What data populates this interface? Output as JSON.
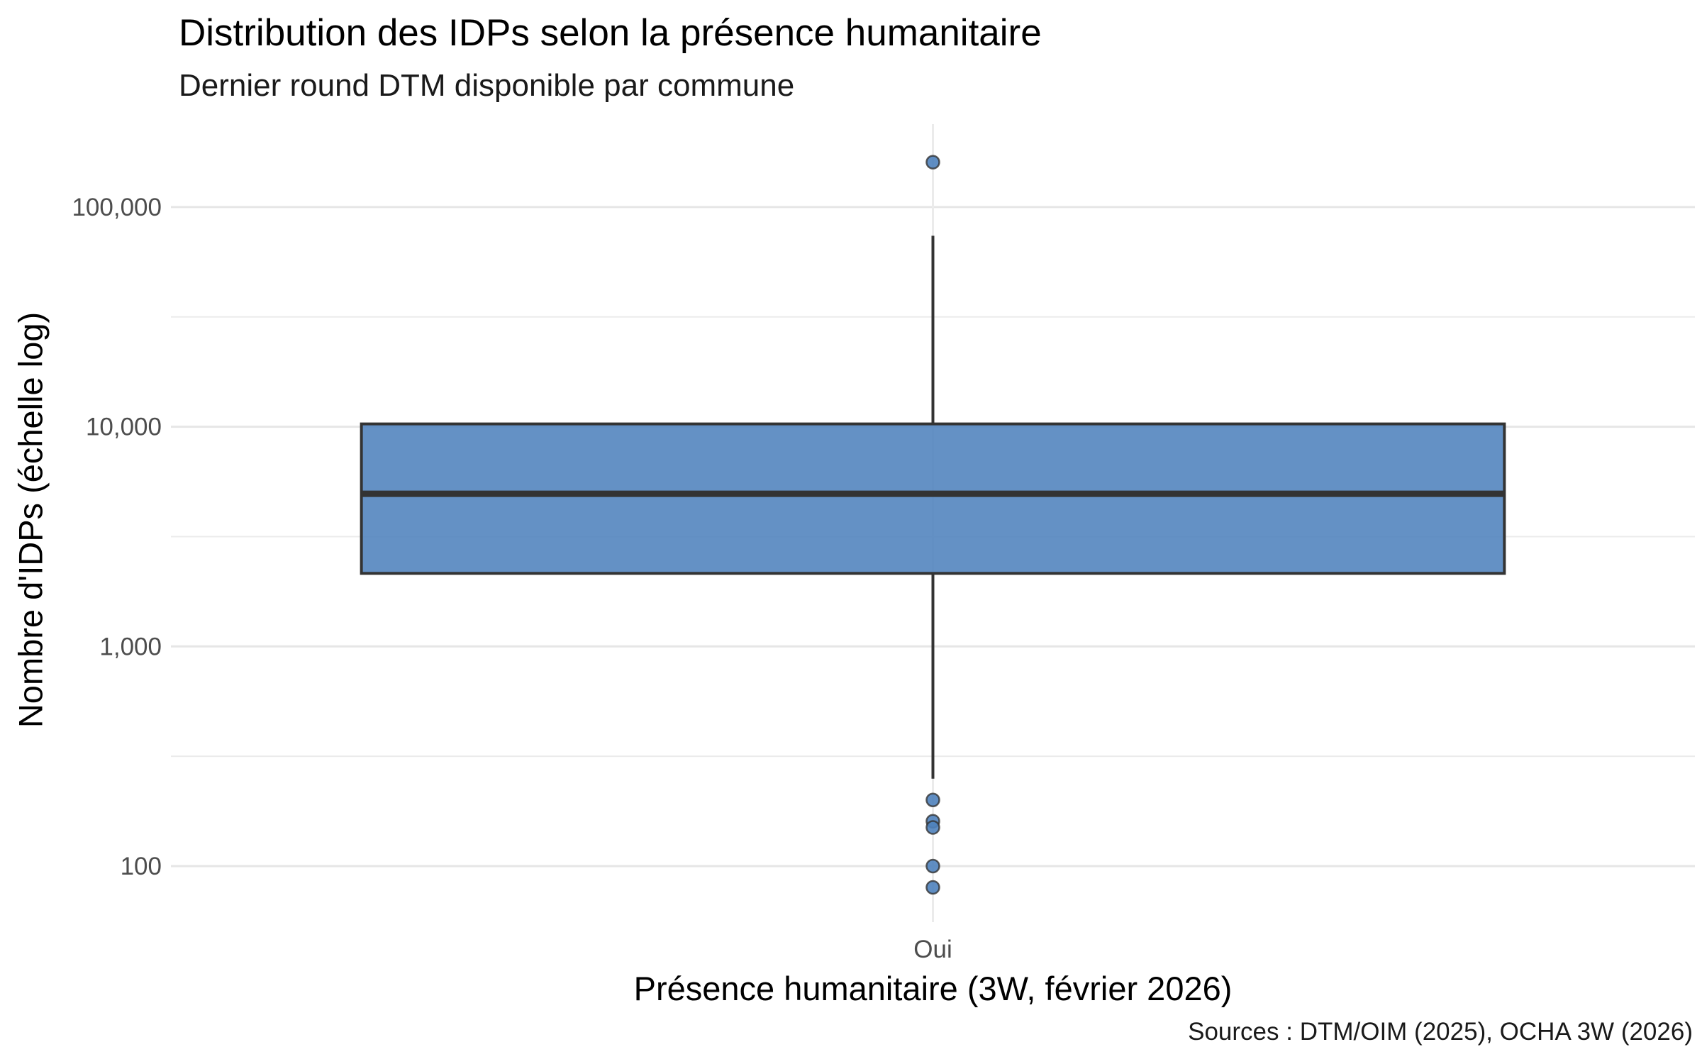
{
  "chart_data": {
    "type": "box",
    "title": "Distribution des IDPs selon la présence humanitaire",
    "subtitle": "Dernier round DTM disponible par commune",
    "xlabel": "Présence humanitaire (3W, février 2026)",
    "ylabel": "Nombre d'IDPs (échelle log)",
    "caption": "Sources : DTM/OIM (2025), OCHA 3W (2026)",
    "y_scale": "log10",
    "ylim": [
      50,
      230000
    ],
    "y_ticks": [
      100,
      1000,
      10000,
      100000
    ],
    "y_tick_labels": [
      "100",
      "1,000",
      "10,000",
      "100,000"
    ],
    "categories": [
      "Oui"
    ],
    "boxes": [
      {
        "category": "Oui",
        "whisker_low": 250,
        "q1": 2150,
        "median": 4950,
        "q3": 10300,
        "whisker_high": 74000,
        "outliers": [
          160000,
          200,
          160,
          150,
          100,
          80
        ]
      }
    ],
    "fill_color": "#4f82bd",
    "line_color": "#333333",
    "grid": true,
    "legend": "none"
  }
}
